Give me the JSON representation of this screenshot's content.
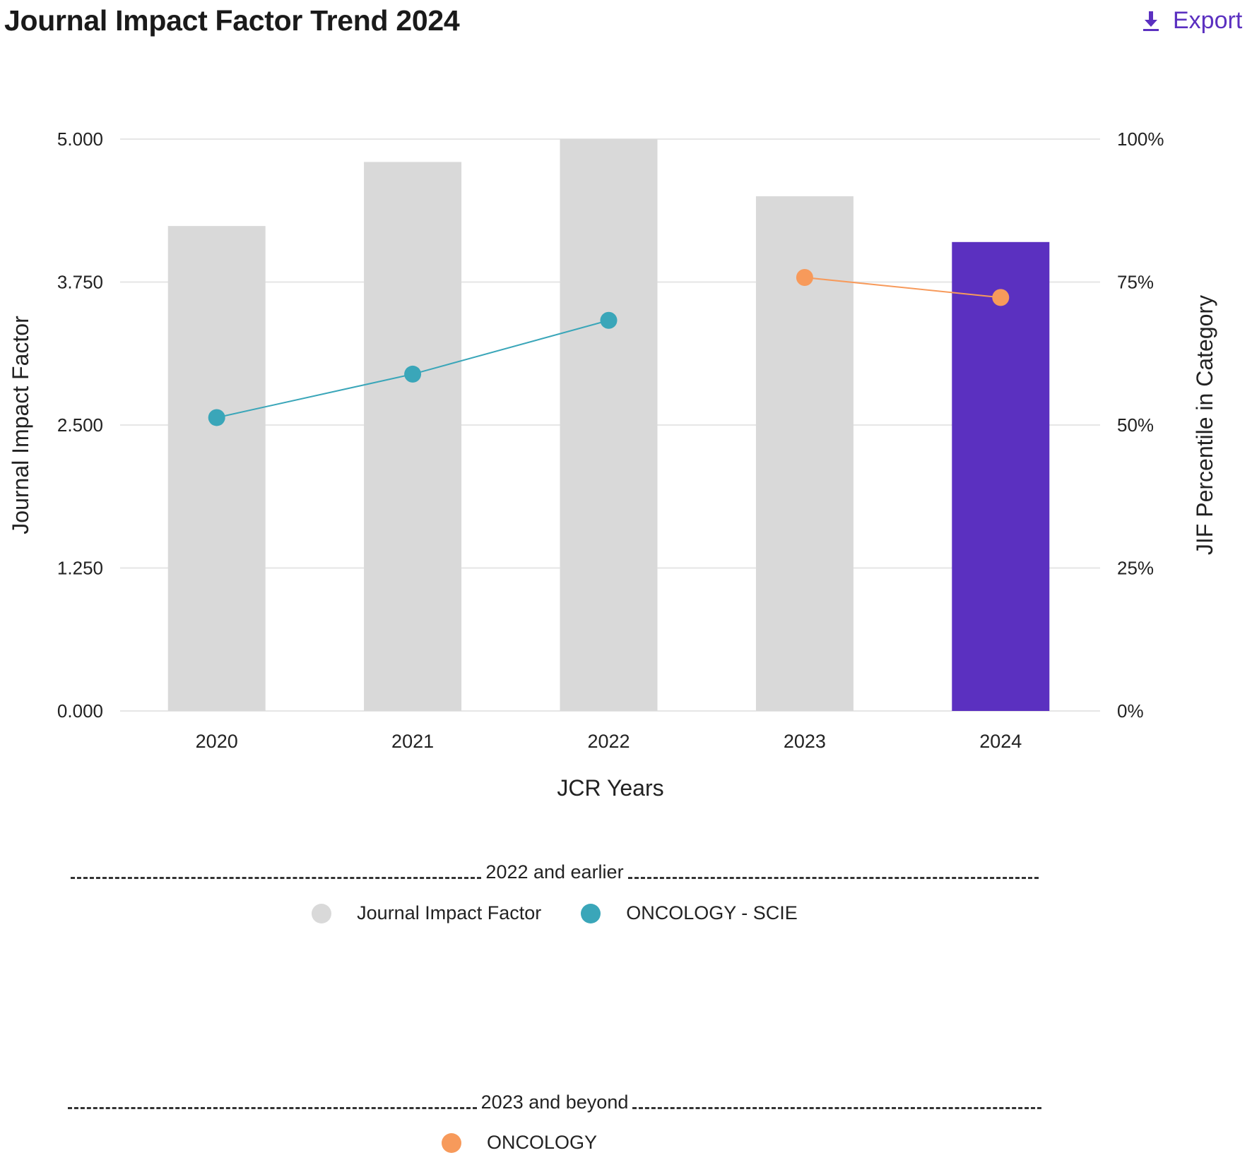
{
  "header": {
    "title": "Journal Impact Factor Trend 2024",
    "export_label": "Export",
    "export_icon": "download-icon",
    "accent": "#5b30c0"
  },
  "chart_data": {
    "type": "bar+line",
    "xlabel": "JCR Years",
    "ylabel": "Journal Impact Factor",
    "y2label": "JIF Percentile in Category",
    "categories": [
      "2020",
      "2021",
      "2022",
      "2023",
      "2024"
    ],
    "ylim": [
      0,
      5
    ],
    "y_ticks": [
      "0.000",
      "1.250",
      "2.500",
      "3.750",
      "5.000"
    ],
    "y2lim": [
      0,
      100
    ],
    "y2_ticks": [
      "0%",
      "25%",
      "50%",
      "75%",
      "100%"
    ],
    "grid": true,
    "bars": {
      "name": "Journal Impact Factor",
      "values": [
        4.24,
        4.8,
        5.0,
        4.5,
        4.1
      ],
      "colors": [
        "#d9d9d9",
        "#d9d9d9",
        "#d9d9d9",
        "#d9d9d9",
        "#5b30c0"
      ]
    },
    "lines": [
      {
        "name": "ONCOLOGY - SCIE",
        "x": [
          "2020",
          "2021",
          "2022"
        ],
        "values": [
          51.3,
          58.9,
          68.3
        ],
        "color": "#3aa6b9"
      },
      {
        "name": "ONCOLOGY",
        "x": [
          "2023",
          "2024"
        ],
        "values": [
          75.8,
          72.3
        ],
        "color": "#f79a5b"
      }
    ]
  },
  "legend": {
    "groups": [
      {
        "heading": "2022 and earlier",
        "items": [
          {
            "label": "Journal Impact Factor",
            "color": "#d9d9d9"
          },
          {
            "label": "ONCOLOGY - SCIE",
            "color": "#3aa6b9"
          }
        ]
      },
      {
        "heading": "2023 and beyond",
        "items": [
          {
            "label": "ONCOLOGY",
            "color": "#f79a5b"
          }
        ]
      }
    ]
  }
}
